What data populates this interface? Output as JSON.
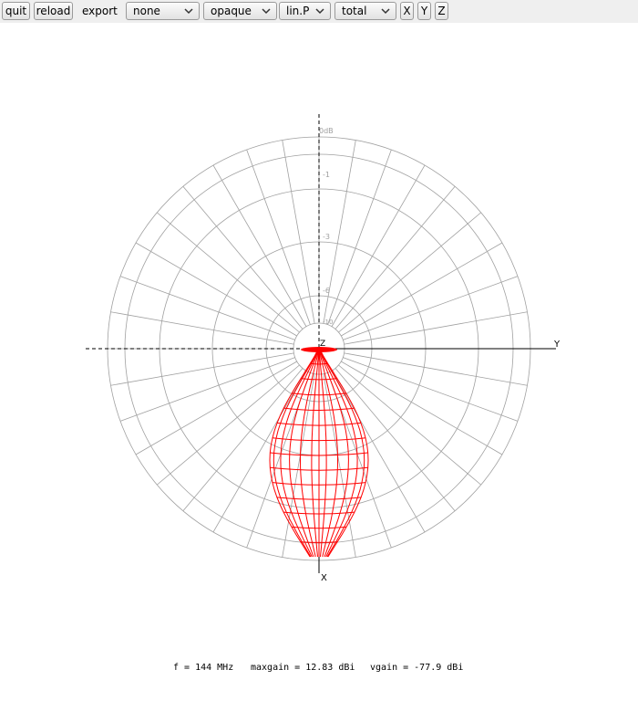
{
  "toolbar": {
    "quit_label": "quit",
    "reload_label": "reload",
    "export_label": "export",
    "export_select": "none",
    "opacity_select": "opaque",
    "scale_select": "lin.P",
    "polarization_select": "total",
    "x_label": "X",
    "y_label": "Y",
    "z_label": "Z"
  },
  "plot": {
    "axis_y_label": "Y",
    "axis_x_label": "X",
    "axis_z_label": "Z",
    "ring_labels": [
      "0dB",
      "-1",
      "-3",
      "-6",
      "-10"
    ],
    "grid_color": "#a0a0a0",
    "pattern_color": "#ff0000"
  },
  "status": {
    "frequency": "f = 144 MHz",
    "maxgain": "maxgain = 12.83 dBi",
    "vgain": "vgain = -77.9 dBi"
  }
}
